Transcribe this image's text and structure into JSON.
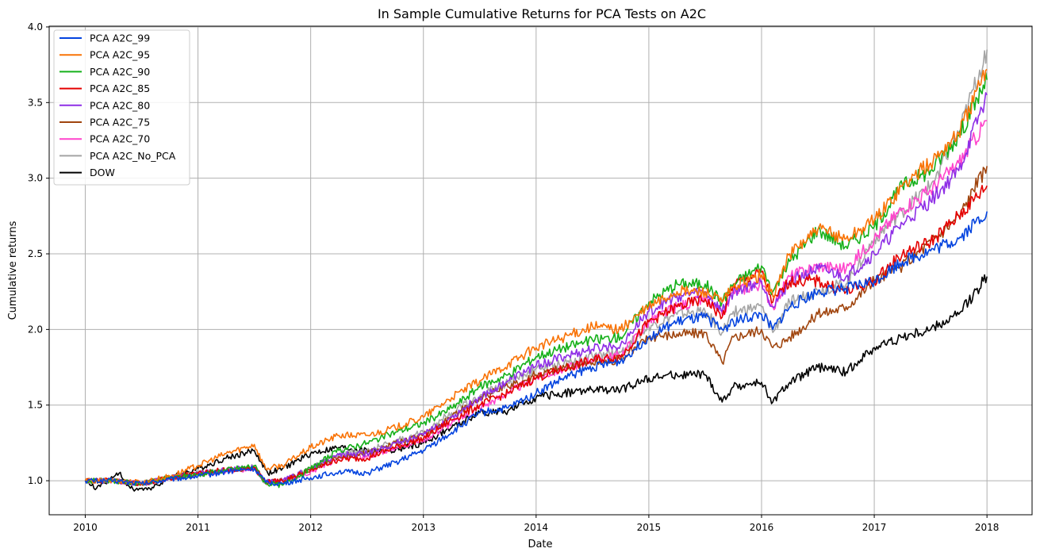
{
  "chart_data": {
    "type": "line",
    "title": "In Sample Cumulative Returns for PCA Tests on A2C",
    "xlabel": "Date",
    "ylabel": "Cumulative returns",
    "xlim": [
      2009.68,
      2018.4
    ],
    "ylim": [
      0.775,
      4.005
    ],
    "x_ticks": [
      2010,
      2011,
      2012,
      2013,
      2014,
      2015,
      2016,
      2017,
      2018
    ],
    "y_ticks": [
      1.0,
      1.5,
      2.0,
      2.5,
      3.0,
      3.5,
      4.0
    ],
    "y_tick_labels": [
      "1.0",
      "1.5",
      "2.0",
      "2.5",
      "3.0",
      "3.5",
      "4.0"
    ],
    "grid": true,
    "legend_position": "upper-left",
    "series": [
      {
        "name": "PCA A2C_99",
        "color": "#0343df",
        "x": [
          2010.0,
          2010.25,
          2010.5,
          2010.75,
          2011.0,
          2011.25,
          2011.5,
          2011.6,
          2011.75,
          2012.0,
          2012.25,
          2012.5,
          2012.75,
          2013.0,
          2013.25,
          2013.5,
          2013.75,
          2014.0,
          2014.25,
          2014.5,
          2014.75,
          2015.0,
          2015.25,
          2015.5,
          2015.65,
          2015.75,
          2016.0,
          2016.1,
          2016.25,
          2016.5,
          2016.75,
          2017.0,
          2017.25,
          2017.5,
          2017.75,
          2018.0
        ],
        "y": [
          1.0,
          1.0,
          0.98,
          1.01,
          1.03,
          1.06,
          1.08,
          0.99,
          0.98,
          1.02,
          1.06,
          1.05,
          1.12,
          1.2,
          1.32,
          1.45,
          1.48,
          1.58,
          1.68,
          1.75,
          1.79,
          1.95,
          2.05,
          2.08,
          2.0,
          2.05,
          2.1,
          2.0,
          2.15,
          2.25,
          2.27,
          2.32,
          2.45,
          2.52,
          2.6,
          2.78
        ]
      },
      {
        "name": "PCA A2C_95",
        "color": "#f97306",
        "x": [
          2010.0,
          2010.25,
          2010.5,
          2010.75,
          2011.0,
          2011.25,
          2011.5,
          2011.6,
          2011.75,
          2012.0,
          2012.25,
          2012.5,
          2012.75,
          2013.0,
          2013.25,
          2013.5,
          2013.75,
          2014.0,
          2014.25,
          2014.5,
          2014.75,
          2015.0,
          2015.25,
          2015.5,
          2015.65,
          2015.75,
          2016.0,
          2016.1,
          2016.25,
          2016.5,
          2016.75,
          2017.0,
          2017.25,
          2017.5,
          2017.75,
          2018.0
        ],
        "y": [
          1.0,
          1.0,
          0.99,
          1.03,
          1.1,
          1.18,
          1.24,
          1.08,
          1.1,
          1.22,
          1.3,
          1.3,
          1.35,
          1.42,
          1.55,
          1.66,
          1.77,
          1.88,
          1.95,
          2.02,
          2.0,
          2.15,
          2.25,
          2.25,
          2.18,
          2.28,
          2.36,
          2.22,
          2.5,
          2.66,
          2.6,
          2.72,
          2.95,
          3.1,
          3.3,
          3.72
        ]
      },
      {
        "name": "PCA A2C_90",
        "color": "#15b01a",
        "x": [
          2010.0,
          2010.25,
          2010.5,
          2010.75,
          2011.0,
          2011.25,
          2011.5,
          2011.6,
          2011.75,
          2012.0,
          2012.25,
          2012.5,
          2012.75,
          2013.0,
          2013.25,
          2013.5,
          2013.75,
          2014.0,
          2014.25,
          2014.5,
          2014.75,
          2015.0,
          2015.25,
          2015.5,
          2015.65,
          2015.75,
          2016.0,
          2016.1,
          2016.25,
          2016.5,
          2016.75,
          2017.0,
          2017.25,
          2017.5,
          2017.75,
          2018.0
        ],
        "y": [
          1.0,
          1.0,
          0.98,
          1.02,
          1.04,
          1.07,
          1.1,
          0.98,
          0.97,
          1.08,
          1.2,
          1.25,
          1.32,
          1.38,
          1.48,
          1.62,
          1.7,
          1.82,
          1.88,
          1.93,
          1.95,
          2.18,
          2.3,
          2.3,
          2.18,
          2.3,
          2.42,
          2.25,
          2.45,
          2.66,
          2.55,
          2.68,
          2.95,
          3.05,
          3.28,
          3.65
        ]
      },
      {
        "name": "PCA A2C_85",
        "color": "#e50000",
        "x": [
          2010.0,
          2010.25,
          2010.5,
          2010.75,
          2011.0,
          2011.25,
          2011.5,
          2011.6,
          2011.75,
          2012.0,
          2012.25,
          2012.5,
          2012.75,
          2013.0,
          2013.25,
          2013.5,
          2013.75,
          2014.0,
          2014.25,
          2014.5,
          2014.75,
          2015.0,
          2015.25,
          2015.5,
          2015.65,
          2015.75,
          2016.0,
          2016.1,
          2016.25,
          2016.5,
          2016.75,
          2017.0,
          2017.25,
          2017.5,
          2017.75,
          2018.0
        ],
        "y": [
          1.0,
          1.0,
          0.98,
          1.02,
          1.05,
          1.07,
          1.09,
          0.99,
          1.0,
          1.07,
          1.14,
          1.15,
          1.22,
          1.28,
          1.4,
          1.5,
          1.58,
          1.68,
          1.74,
          1.8,
          1.82,
          2.05,
          2.15,
          2.2,
          2.08,
          2.3,
          2.38,
          2.18,
          2.32,
          2.32,
          2.25,
          2.32,
          2.5,
          2.58,
          2.75,
          2.95
        ]
      },
      {
        "name": "PCA A2C_80",
        "color": "#8e2ee6",
        "x": [
          2010.0,
          2010.25,
          2010.5,
          2010.75,
          2011.0,
          2011.25,
          2011.5,
          2011.6,
          2011.75,
          2012.0,
          2012.25,
          2012.5,
          2012.75,
          2013.0,
          2013.25,
          2013.5,
          2013.75,
          2014.0,
          2014.25,
          2014.5,
          2014.75,
          2015.0,
          2015.25,
          2015.5,
          2015.65,
          2015.75,
          2016.0,
          2016.1,
          2016.25,
          2016.5,
          2016.75,
          2017.0,
          2017.25,
          2017.5,
          2017.75,
          2018.0
        ],
        "y": [
          1.0,
          1.0,
          0.98,
          1.02,
          1.05,
          1.07,
          1.09,
          0.99,
          1.0,
          1.08,
          1.17,
          1.18,
          1.25,
          1.3,
          1.42,
          1.55,
          1.66,
          1.76,
          1.82,
          1.87,
          1.9,
          2.12,
          2.22,
          2.25,
          2.12,
          2.25,
          2.32,
          2.15,
          2.32,
          2.4,
          2.35,
          2.5,
          2.7,
          2.85,
          3.05,
          3.55
        ]
      },
      {
        "name": "PCA A2C_75",
        "color": "#a0450e",
        "x": [
          2010.0,
          2010.25,
          2010.5,
          2010.75,
          2011.0,
          2011.25,
          2011.5,
          2011.6,
          2011.75,
          2012.0,
          2012.25,
          2012.5,
          2012.75,
          2013.0,
          2013.25,
          2013.5,
          2013.75,
          2014.0,
          2014.25,
          2014.5,
          2014.75,
          2015.0,
          2015.25,
          2015.5,
          2015.65,
          2015.75,
          2016.0,
          2016.1,
          2016.25,
          2016.5,
          2016.75,
          2017.0,
          2017.25,
          2017.5,
          2017.75,
          2018.0
        ],
        "y": [
          1.0,
          1.0,
          0.98,
          1.02,
          1.05,
          1.07,
          1.09,
          0.99,
          1.0,
          1.07,
          1.16,
          1.18,
          1.25,
          1.3,
          1.42,
          1.55,
          1.62,
          1.7,
          1.75,
          1.78,
          1.8,
          1.95,
          1.97,
          1.98,
          1.78,
          1.95,
          2.0,
          1.88,
          1.95,
          2.1,
          2.15,
          2.32,
          2.42,
          2.58,
          2.75,
          3.08
        ]
      },
      {
        "name": "PCA A2C_70",
        "color": "#ff44cc",
        "x": [
          2010.0,
          2010.25,
          2010.5,
          2010.75,
          2011.0,
          2011.25,
          2011.5,
          2011.6,
          2011.75,
          2012.0,
          2012.25,
          2012.5,
          2012.75,
          2013.0,
          2013.25,
          2013.5,
          2013.75,
          2014.0,
          2014.25,
          2014.5,
          2014.75,
          2015.0,
          2015.25,
          2015.5,
          2015.65,
          2015.75,
          2016.0,
          2016.1,
          2016.25,
          2016.5,
          2016.75,
          2017.0,
          2017.25,
          2017.5,
          2017.75,
          2018.0
        ],
        "y": [
          1.0,
          1.0,
          0.98,
          1.02,
          1.04,
          1.06,
          1.08,
          0.99,
          1.0,
          1.06,
          1.15,
          1.16,
          1.22,
          1.27,
          1.38,
          1.48,
          1.58,
          1.68,
          1.74,
          1.8,
          1.83,
          2.05,
          2.15,
          2.2,
          2.1,
          2.25,
          2.3,
          2.15,
          2.35,
          2.42,
          2.4,
          2.6,
          2.8,
          2.92,
          3.1,
          3.38
        ]
      },
      {
        "name": "PCA A2C_No_PCA",
        "color": "#a5a5a5",
        "x": [
          2010.0,
          2010.25,
          2010.5,
          2010.75,
          2011.0,
          2011.25,
          2011.5,
          2011.6,
          2011.75,
          2012.0,
          2012.25,
          2012.5,
          2012.75,
          2013.0,
          2013.25,
          2013.5,
          2013.75,
          2014.0,
          2014.25,
          2014.5,
          2014.75,
          2015.0,
          2015.25,
          2015.5,
          2015.65,
          2015.75,
          2016.0,
          2016.1,
          2016.25,
          2016.5,
          2016.75,
          2017.0,
          2017.25,
          2017.5,
          2017.75,
          2018.0
        ],
        "y": [
          1.0,
          1.0,
          0.98,
          1.02,
          1.05,
          1.07,
          1.09,
          0.99,
          0.99,
          1.08,
          1.18,
          1.2,
          1.26,
          1.32,
          1.45,
          1.56,
          1.65,
          1.74,
          1.78,
          1.82,
          1.85,
          2.02,
          2.1,
          2.12,
          1.98,
          2.12,
          2.15,
          1.98,
          2.18,
          2.26,
          2.3,
          2.6,
          2.78,
          2.95,
          3.3,
          3.85
        ]
      },
      {
        "name": "DOW",
        "color": "#000000",
        "x": [
          2010.0,
          2010.1,
          2010.3,
          2010.4,
          2010.55,
          2010.75,
          2011.0,
          2011.25,
          2011.5,
          2011.62,
          2011.75,
          2012.0,
          2012.25,
          2012.5,
          2012.75,
          2013.0,
          2013.25,
          2013.5,
          2013.75,
          2014.0,
          2014.25,
          2014.5,
          2014.75,
          2015.0,
          2015.25,
          2015.5,
          2015.65,
          2015.75,
          2016.0,
          2016.1,
          2016.25,
          2016.5,
          2016.75,
          2017.0,
          2017.25,
          2017.5,
          2017.75,
          2018.0
        ],
        "y": [
          1.0,
          0.95,
          1.05,
          0.95,
          0.94,
          1.02,
          1.08,
          1.15,
          1.2,
          1.05,
          1.08,
          1.18,
          1.22,
          1.2,
          1.2,
          1.25,
          1.35,
          1.45,
          1.46,
          1.55,
          1.58,
          1.6,
          1.6,
          1.68,
          1.7,
          1.7,
          1.52,
          1.62,
          1.65,
          1.52,
          1.65,
          1.75,
          1.72,
          1.88,
          1.95,
          2.0,
          2.1,
          2.35
        ]
      }
    ]
  }
}
